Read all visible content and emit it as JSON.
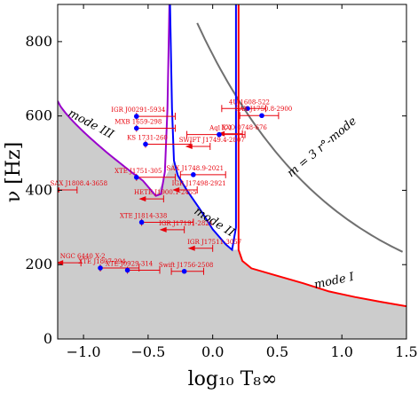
{
  "chart_data": {
    "type": "scatter",
    "xlabel": "log₁₀ T₈∞",
    "ylabel": "ν [Hz]",
    "xlim": [
      -1.2,
      1.5
    ],
    "ylim": [
      0,
      900
    ],
    "xticks": [
      "−1.0",
      "−0.5",
      "0.0",
      "0.5",
      "1.0",
      "1.5"
    ],
    "yticks": [
      "0",
      "200",
      "400",
      "600",
      "800"
    ],
    "grid": false,
    "colors": {
      "mode_I": "#ff0000",
      "mode_II": "#0000ff",
      "mode_III": "#9900cc",
      "r_mode": "#707070",
      "points": "#0000ff",
      "labels": "#e8000b",
      "shade": "#cccccc"
    },
    "curve_labels": {
      "mode_I": "mode I",
      "mode_II": "mode II",
      "mode_III": "mode III",
      "r_mode": "m = 3 r°-mode"
    },
    "sources": [
      {
        "name": "4U 1608-522",
        "x": 0.27,
        "y": 620,
        "xerr": [
          0.2,
          0.14
        ],
        "upper_limit": false
      },
      {
        "name": "SAX J1750.8-2900",
        "x": 0.38,
        "y": 601,
        "xerr": [
          0.17,
          0.13
        ],
        "upper_limit": false
      },
      {
        "name": "IGR J00291-5934",
        "x": -0.59,
        "y": 599,
        "xerr": [
          0,
          0.3
        ],
        "upper_limit": false
      },
      {
        "name": "MXB 1659-298",
        "x": -0.59,
        "y": 567,
        "xerr": [
          0,
          0.3
        ],
        "upper_limit": false
      },
      {
        "name": "EXO 0748-676",
        "x": 0.23,
        "y": 552,
        "xerr": [
          0,
          0.0
        ],
        "upper_limit": true
      },
      {
        "name": "KS 1731-260",
        "x": -0.52,
        "y": 524,
        "xerr": [
          0,
          0.35
        ],
        "upper_limit": false
      },
      {
        "name": "Aql X-1",
        "x": 0.05,
        "y": 550,
        "xerr": [
          0.25,
          0.2
        ],
        "upper_limit": false
      },
      {
        "name": "SWIFT J1749.4-2807",
        "x": -0.02,
        "y": 518,
        "xerr": [
          0,
          0.0
        ],
        "upper_limit": true
      },
      {
        "name": "XTE J1751-305",
        "x": -0.59,
        "y": 435,
        "xerr": [
          0,
          0.3
        ],
        "upper_limit": false
      },
      {
        "name": "SAX J1748.9-2021",
        "x": -0.15,
        "y": 442,
        "xerr": [
          0.1,
          0.25
        ],
        "upper_limit": false
      },
      {
        "name": "IGR J17498-2921",
        "x": -0.12,
        "y": 401,
        "xerr": [
          0,
          0.0
        ],
        "upper_limit": true
      },
      {
        "name": "SAX J1808.4-3658",
        "x": -1.05,
        "y": 401,
        "xerr": [
          0,
          0.0
        ],
        "upper_limit": true
      },
      {
        "name": "HETE J1900.1-2455",
        "x": -0.38,
        "y": 377,
        "xerr": [
          0,
          0.0
        ],
        "upper_limit": true
      },
      {
        "name": "XTE J1814-338",
        "x": -0.55,
        "y": 314,
        "xerr": [
          0,
          0.4
        ],
        "upper_limit": false
      },
      {
        "name": "IGR J17191-2821",
        "x": -0.22,
        "y": 294,
        "xerr": [
          0,
          0.0
        ],
        "upper_limit": true
      },
      {
        "name": "IGR J17511-3057",
        "x": 0.0,
        "y": 244,
        "xerr": [
          0,
          0.0
        ],
        "upper_limit": true
      },
      {
        "name": "NGC 6440 X-2",
        "x": -1.02,
        "y": 205,
        "xerr": [
          0,
          0.0
        ],
        "upper_limit": true
      },
      {
        "name": "XTE J1807-294",
        "x": -0.87,
        "y": 191,
        "xerr": [
          0,
          0.3
        ],
        "upper_limit": false
      },
      {
        "name": "XTE J0929-314",
        "x": -0.66,
        "y": 185,
        "xerr": [
          0,
          0.25
        ],
        "upper_limit": false
      },
      {
        "name": "Swift J1756-2508",
        "x": -0.22,
        "y": 182,
        "xerr": [
          0.1,
          0.15
        ],
        "upper_limit": false
      }
    ]
  }
}
